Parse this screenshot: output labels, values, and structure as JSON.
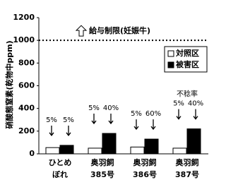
{
  "chart_data": {
    "type": "bar",
    "y_label": "硝酸態窒素(乾物中ppm)",
    "categories": [
      "ひとめ\nぼれ",
      "奥羽飼\n385号",
      "奥羽飼\n386号",
      "奥羽飼\n387号"
    ],
    "series": [
      {
        "name": "対照区",
        "color": "#ffffff",
        "values": [
          55,
          50,
          60,
          50
        ]
      },
      {
        "name": "被害区",
        "color": "#000000",
        "values": [
          75,
          180,
          130,
          220
        ]
      }
    ],
    "ylim": [
      0,
      1200
    ],
    "yticks": [
      0,
      200,
      400,
      600,
      800,
      1000,
      1200
    ],
    "reference_line": {
      "value": 1000,
      "label": "給与制限(妊娠牛)"
    },
    "annotation_title": "不稔率",
    "annotations": [
      [
        "5%",
        "5%"
      ],
      [
        "5%",
        "40%"
      ],
      [
        "5%",
        "60%"
      ],
      [
        "5%",
        "40%"
      ]
    ],
    "legend": "upper right"
  }
}
